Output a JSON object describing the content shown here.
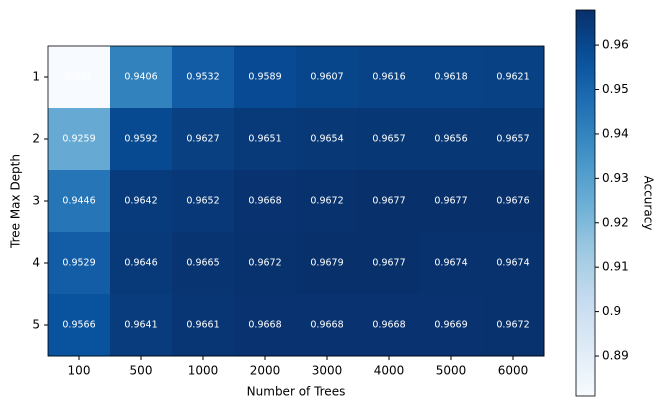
{
  "chart_data": {
    "type": "heatmap",
    "x_label": "Number of Trees",
    "y_label": "Tree Max Depth",
    "colorbar_label": "Accuracy",
    "categories": [
      "100",
      "500",
      "1000",
      "2000",
      "3000",
      "4000",
      "5000",
      "6000"
    ],
    "rows": [
      "1",
      "2",
      "3",
      "4",
      "5"
    ],
    "values": [
      [
        0.881,
        0.9406,
        0.9532,
        0.9589,
        0.9607,
        0.9616,
        0.9618,
        0.9621
      ],
      [
        0.9259,
        0.9592,
        0.9627,
        0.9651,
        0.9654,
        0.9657,
        0.9656,
        0.9657
      ],
      [
        0.9446,
        0.9642,
        0.9652,
        0.9668,
        0.9672,
        0.9677,
        0.9677,
        0.9676
      ],
      [
        0.9529,
        0.9646,
        0.9665,
        0.9672,
        0.9679,
        0.9677,
        0.9674,
        0.9674
      ],
      [
        0.9566,
        0.9641,
        0.9661,
        0.9668,
        0.9668,
        0.9668,
        0.9669,
        0.9672
      ]
    ],
    "colormap": "Blues",
    "clim": [
      0.881,
      0.9679
    ],
    "cticks": [
      0.89,
      0.9,
      0.91,
      0.92,
      0.93,
      0.94,
      0.95,
      0.96
    ],
    "annotation_color": "#ffffff"
  }
}
